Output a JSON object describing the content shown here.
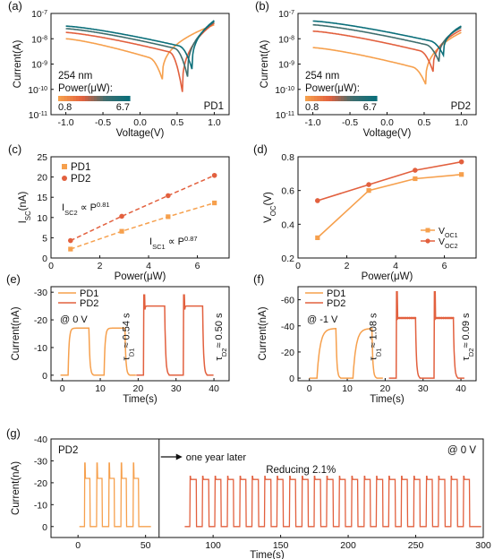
{
  "colors": {
    "pd1": "#F6A04D",
    "pd2": "#E2603E",
    "axis": "#111111",
    "reducing": "#7B2FA0",
    "gradient": [
      "#F6A04D",
      "#E2603E",
      "#3F6E6E",
      "#0B6F7A"
    ]
  },
  "chart_data": [
    {
      "id": "a",
      "panel_label": "(a)",
      "type": "line",
      "xlabel": "Voltage(V)",
      "ylabel": "Current(A)",
      "xlim": [
        -1.2,
        1.2
      ],
      "ylim_log10": [
        -11,
        -7
      ],
      "y_scale": "log",
      "xticks": [
        "-1.0",
        "-0.5",
        "0.0",
        "0.5",
        "1.0"
      ],
      "yticks": [
        "10^-11",
        "10^-10",
        "10^-9",
        "10^-8",
        "10^-7"
      ],
      "annotations": [
        "254 nm",
        "Power(μW):",
        "0.8",
        "6.7",
        "PD1"
      ],
      "power_range": [
        0.8,
        6.7
      ],
      "series": [
        {
          "dip_v": 0.3,
          "dip_log": -9.6,
          "left_log": -8.0,
          "right_log": -7.45,
          "colorIndex": 0
        },
        {
          "dip_v": 0.57,
          "dip_log": -10.1,
          "left_log": -7.75,
          "right_log": -7.38,
          "colorIndex": 1
        },
        {
          "dip_v": 0.64,
          "dip_log": -9.5,
          "left_log": -7.6,
          "right_log": -7.33,
          "colorIndex": 2
        },
        {
          "dip_v": 0.7,
          "dip_log": -9.2,
          "left_log": -7.5,
          "right_log": -7.28,
          "colorIndex": 3
        }
      ]
    },
    {
      "id": "b",
      "panel_label": "(b)",
      "type": "line",
      "xlabel": "Voltage(V)",
      "ylabel": "Current(A)",
      "xlim": [
        -1.2,
        1.2
      ],
      "ylim_log10": [
        -11,
        -7
      ],
      "y_scale": "log",
      "xticks": [
        "-1.0",
        "-0.5",
        "0.0",
        "0.5",
        "1.0"
      ],
      "yticks": [
        "10^-11",
        "10^-10",
        "10^-9",
        "10^-8",
        "10^-7"
      ],
      "annotations": [
        "254 nm",
        "Power(μW):",
        "0.8",
        "6.7",
        "PD2"
      ],
      "power_range": [
        0.8,
        6.7
      ],
      "series": [
        {
          "dip_v": 0.52,
          "dip_log": -9.8,
          "left_log": -8.35,
          "right_log": -7.75,
          "colorIndex": 0
        },
        {
          "dip_v": 0.62,
          "dip_log": -9.3,
          "left_log": -7.7,
          "right_log": -7.65,
          "colorIndex": 1
        },
        {
          "dip_v": 0.7,
          "dip_log": -8.9,
          "left_log": -7.45,
          "right_log": -7.55,
          "colorIndex": 2
        },
        {
          "dip_v": 0.76,
          "dip_log": -8.65,
          "left_log": -7.3,
          "right_log": -7.5,
          "colorIndex": 3
        }
      ]
    },
    {
      "id": "c",
      "panel_label": "(c)",
      "type": "scatter",
      "xlabel": "Power(μW)",
      "ylabel": "I_SC(nA)",
      "xlim": [
        0,
        7.3
      ],
      "ylim": [
        0,
        25
      ],
      "xticks": [
        0,
        2,
        4,
        6
      ],
      "yticks": [
        0,
        5,
        10,
        15,
        20,
        25
      ],
      "legend": [
        "PD1",
        "PD2"
      ],
      "fit_labels": [
        {
          "base": "I",
          "sub": "SC2",
          "rest": "∝ P",
          "sup": "0.81"
        },
        {
          "base": "I",
          "sub": "SC1",
          "rest": "∝ P",
          "sup": "0.87"
        }
      ],
      "series": [
        {
          "name": "PD1",
          "x": [
            0.8,
            2.9,
            4.8,
            6.7
          ],
          "y": [
            2.2,
            6.6,
            10.2,
            13.6
          ]
        },
        {
          "name": "PD2",
          "x": [
            0.8,
            2.9,
            4.8,
            6.7
          ],
          "y": [
            4.3,
            10.3,
            15.4,
            20.4
          ]
        }
      ]
    },
    {
      "id": "d",
      "panel_label": "(d)",
      "type": "line",
      "xlabel": "Power(μW)",
      "ylabel": "V_OC(V)",
      "xlim": [
        0,
        7.3
      ],
      "ylim": [
        0.2,
        0.8
      ],
      "xticks": [
        0,
        2,
        4,
        6
      ],
      "yticks": [
        "0.2",
        "0.4",
        "0.6",
        "0.8"
      ],
      "legend": [
        {
          "base": "V",
          "sub": "OC1"
        },
        {
          "base": "V",
          "sub": "OC2"
        }
      ],
      "series": [
        {
          "name": "V_OC1",
          "x": [
            0.8,
            2.9,
            4.8,
            6.7
          ],
          "y": [
            0.32,
            0.6,
            0.67,
            0.695
          ]
        },
        {
          "name": "V_OC2",
          "x": [
            0.8,
            2.9,
            4.8,
            6.7
          ],
          "y": [
            0.54,
            0.635,
            0.72,
            0.77
          ]
        }
      ]
    },
    {
      "id": "e",
      "panel_label": "(e)",
      "type": "line",
      "xlabel": "Time(s)",
      "ylabel": "Current(nA)",
      "xlim": [
        -3,
        44
      ],
      "ylim": [
        2,
        -32
      ],
      "xticks": [
        0,
        10,
        20,
        30,
        40
      ],
      "yticks": [
        "0",
        "-10",
        "-20",
        "-30"
      ],
      "legend": [
        "PD1",
        "PD2"
      ],
      "bias": "@ 0 V",
      "tau_labels": [
        {
          "sym": "τ",
          "sub": "D1",
          "rest": "≈ 0.54 s"
        },
        {
          "sym": "τ",
          "sub": "D2",
          "rest": "≈ 0.50 s"
        }
      ],
      "series": [
        {
          "name": "PD1",
          "on": [
            [
              1.5,
              7
            ],
            [
              11,
              16.5
            ]
          ],
          "on_level": -17,
          "rise": 0.8
        },
        {
          "name": "PD2",
          "on": [
            [
              21.5,
              27
            ],
            [
              32,
              37
            ]
          ],
          "on_level": -25,
          "spike": -29,
          "rise": 0.3
        }
      ]
    },
    {
      "id": "f",
      "panel_label": "(f)",
      "type": "line",
      "xlabel": "Time(s)",
      "ylabel": "Current(nA)",
      "xlim": [
        -3,
        44
      ],
      "ylim": [
        2,
        -70
      ],
      "xticks": [
        0,
        10,
        20,
        30,
        40
      ],
      "yticks": [
        "0",
        "-20",
        "-40",
        "-60"
      ],
      "legend": [
        "PD1",
        "PD2"
      ],
      "bias": "@ -1 V",
      "tau_labels": [
        {
          "sym": "τ",
          "sub": "D1",
          "rest": "≈ 1.08 s"
        },
        {
          "sym": "τ",
          "sub": "D2",
          "rest": "≈ 0.09 s"
        }
      ],
      "series": [
        {
          "name": "PD1",
          "on": [
            [
              2,
              7
            ],
            [
              11.5,
              16.5
            ]
          ],
          "on_level": -38,
          "rise": 2.5
        },
        {
          "name": "PD2",
          "on": [
            [
              23,
              28
            ],
            [
              33,
              38
            ]
          ],
          "on_level": -46,
          "spike": -66,
          "rise": 0.2
        }
      ]
    },
    {
      "id": "g",
      "panel_label": "(g)",
      "type": "line",
      "xlabel": "Time(s)",
      "ylabel": "Current(nA)",
      "xlim": [
        -20,
        300
      ],
      "ylim": [
        5,
        -40
      ],
      "xticks": [
        0,
        50,
        100,
        150,
        200,
        250,
        300
      ],
      "yticks": [
        "0",
        "-10",
        "-20",
        "-30",
        "-40"
      ],
      "sample": "PD2",
      "bias": "@ 0 V",
      "arrow_label": "one year later",
      "reducing_label": "Reducing 2.1%",
      "series": [
        {
          "name": "PD2 initial",
          "period": 9,
          "start": 5,
          "count": 5,
          "on_len": 4,
          "level": -22,
          "spike": -29
        },
        {
          "name": "PD2 one year later",
          "period": 9.2,
          "start": 83,
          "count": 23,
          "on_len": 4.6,
          "level": -21.5,
          "spike": -23
        }
      ]
    }
  ]
}
